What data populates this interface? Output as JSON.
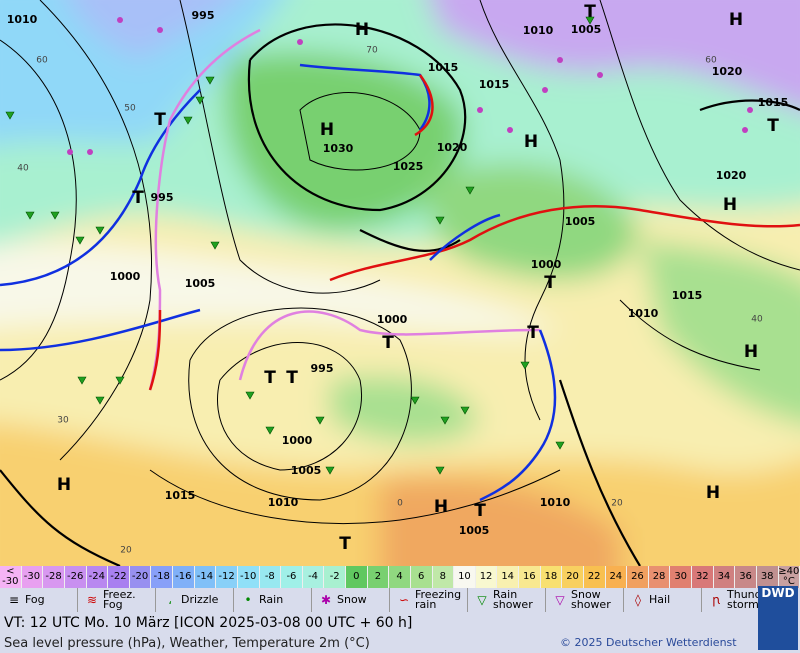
{
  "map": {
    "labels": [
      "1010",
      "995",
      "H",
      "1015",
      "H",
      "1030",
      "1020",
      "1025",
      "T",
      "1010",
      "1005",
      "H",
      "1015",
      "1020",
      "1015",
      "T",
      "H",
      "1020",
      "H",
      "T",
      "T",
      "995",
      "1000",
      "1005",
      "1005",
      "1000",
      "T",
      "1015",
      "1010",
      "H",
      "1000",
      "T",
      "T",
      "995",
      "T",
      "T",
      "1000",
      "1005",
      "1010",
      "1015",
      "1010",
      "H",
      "H",
      "T",
      "1005",
      "H",
      "T"
    ],
    "grid_labels": [
      "60",
      "50",
      "40",
      "30",
      "20",
      "70",
      "60",
      "40",
      "0",
      "20"
    ]
  },
  "legend": {
    "scale": [
      "< -30",
      "-30",
      "-28",
      "-26",
      "-24",
      "-22",
      "-20",
      "-18",
      "-16",
      "-14",
      "-12",
      "-10",
      "-8",
      "-6",
      "-4",
      "-2",
      "0",
      "2",
      "4",
      "6",
      "8",
      "10",
      "12",
      "14",
      "16",
      "18",
      "20",
      "22",
      "24",
      "26",
      "28",
      "30",
      "32",
      "34",
      "36",
      "38",
      "≥40 °C"
    ],
    "weather": [
      "Fog",
      "Freez. Fog",
      "Drizzle",
      "Rain",
      "Snow",
      "Freezing rain",
      "Rain shower",
      "Snow shower",
      "Hail",
      "Thunder storm"
    ]
  },
  "footer": {
    "valid_time": "VT: 12 UTC Mo.  10 März [ICON 2025-03-08  00 UTC + 60 h]",
    "description": "Sea level pressure (hPa), Weather, Temperature 2m (°C)",
    "copyright": "© 2025 Deutscher Wetterdienst",
    "logo": "DWD"
  }
}
